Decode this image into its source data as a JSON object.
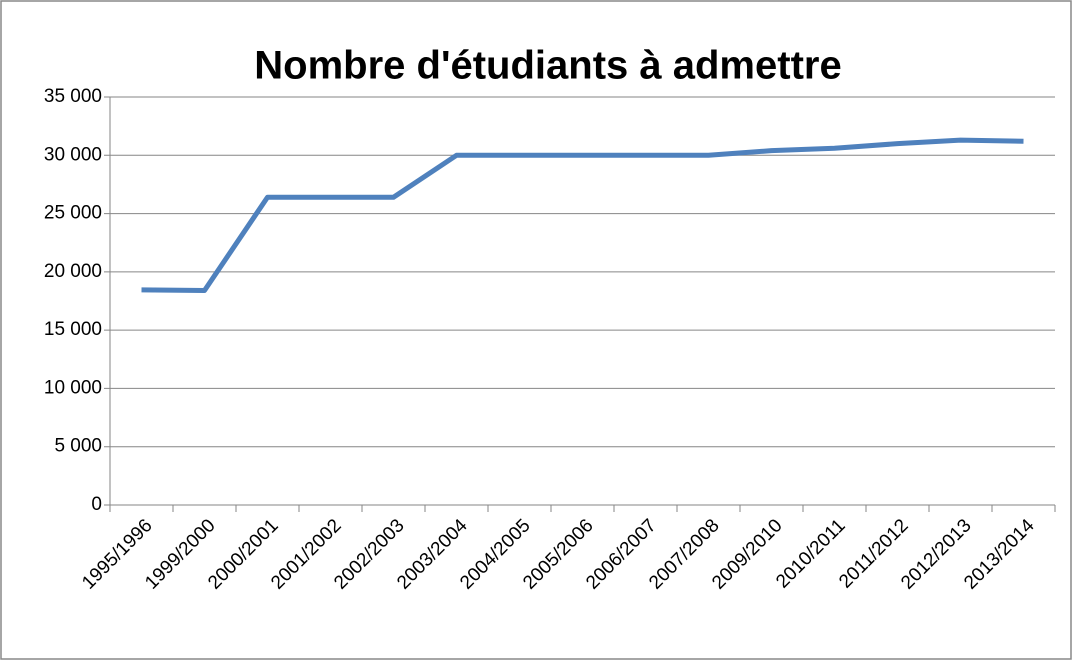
{
  "chart_data": {
    "type": "line",
    "title": "Nombre d'étudiants à admettre",
    "categories": [
      "1995/1996",
      "1999/2000",
      "2000/2001",
      "2001/2002",
      "2002/2003",
      "2003/2004",
      "2004/2005",
      "2005/2006",
      "2006/2007",
      "2007/2008",
      "2009/2010",
      "2010/2011",
      "2011/2012",
      "2012/2013",
      "2013/2014"
    ],
    "series": [
      {
        "name": "Nombre d'étudiants à admettre",
        "color": "#4f81bd",
        "values": [
          18450,
          18400,
          26400,
          26400,
          26400,
          30000,
          30000,
          30000,
          30000,
          30000,
          30400,
          30600,
          31000,
          31300,
          31200
        ]
      }
    ],
    "ylim": [
      0,
      35000
    ],
    "yticks": [
      0,
      {
        "value": 5000,
        "label": "5 000"
      },
      {
        "value": 10000,
        "label": "10 000"
      },
      {
        "value": 15000,
        "label": "15 000"
      },
      {
        "value": 20000,
        "label": "20 000"
      },
      {
        "value": 25000,
        "label": "25 000"
      },
      {
        "value": 30000,
        "label": "30 000"
      },
      {
        "value": 35000,
        "label": "35 000"
      }
    ],
    "grid": true
  }
}
